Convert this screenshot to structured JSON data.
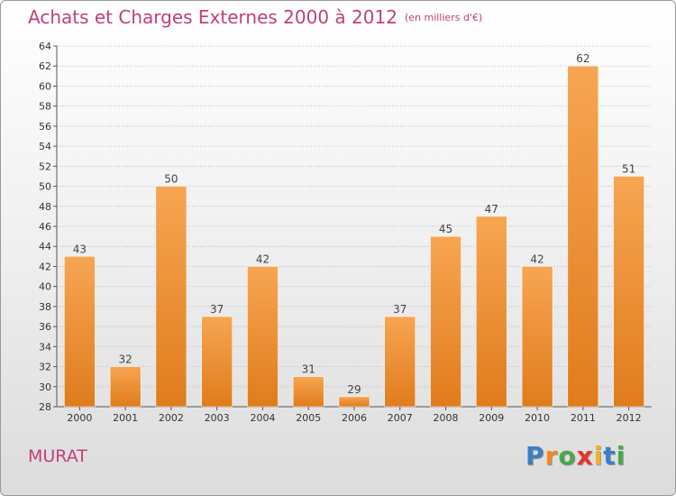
{
  "header": {
    "title": "Achats et Charges Externes 2000 à 2012",
    "unit": "(en milliers d'€)"
  },
  "commune": "MURAT",
  "logo": {
    "letters": [
      "P",
      "r",
      "o",
      "x",
      "i",
      "t",
      "i"
    ],
    "colors": [
      "#3a7fc4",
      "#f08a24",
      "#4aa84a",
      "#e3342f",
      "#f0b323",
      "#3a7fc4",
      "#4aa84a"
    ]
  },
  "colors": {
    "bar_top": "#f7a552",
    "bar_bottom": "#e07c1c",
    "title": "#c0407a",
    "grid": "#b9b9b9"
  },
  "chart_data": {
    "type": "bar",
    "title": "Achats et Charges Externes 2000 à 2012",
    "categories": [
      "2000",
      "2001",
      "2002",
      "2003",
      "2004",
      "2005",
      "2006",
      "2007",
      "2008",
      "2009",
      "2010",
      "2011",
      "2012"
    ],
    "values": [
      43,
      32,
      50,
      37,
      42,
      31,
      29,
      37,
      45,
      47,
      42,
      62,
      51
    ],
    "value_labels": [
      "43",
      "32",
      "50",
      "37",
      "42",
      "31",
      "29",
      "37",
      "45",
      "47",
      "42",
      "62",
      "51"
    ],
    "ylim": [
      28,
      64
    ],
    "yticks": [
      "28",
      "30",
      "32",
      "34",
      "36",
      "38",
      "40",
      "42",
      "44",
      "46",
      "48",
      "50",
      "52",
      "54",
      "56",
      "58",
      "60",
      "62",
      "64"
    ],
    "grid": true
  }
}
